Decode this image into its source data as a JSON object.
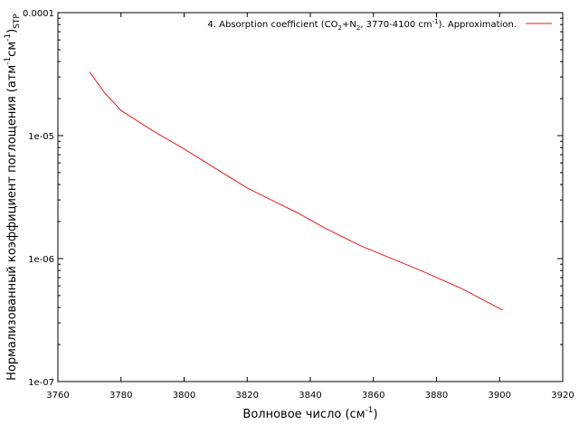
{
  "chart_data": {
    "type": "line",
    "xlabel": "Волновое число (см",
    "xlabel_sup": "-1",
    "xlabel_end": ")",
    "ylabel": {
      "main": "Нормализованный коэффициент поглощения (атм",
      "sup1": "-1",
      "mid": "см",
      "sup2": "-1",
      "close": ")",
      "sub": "STP"
    },
    "xlim": [
      3760,
      3920
    ],
    "ylim": [
      1e-07,
      0.0001
    ],
    "yscale": "log",
    "x_ticks": [
      3760,
      3780,
      3800,
      3820,
      3840,
      3860,
      3880,
      3900,
      3920
    ],
    "y_ticks": [
      {
        "value": 0.0001,
        "label": "0.0001"
      },
      {
        "value": 1e-05,
        "label": "1e-05"
      },
      {
        "value": 1e-06,
        "label": "1e-06"
      },
      {
        "value": 1e-07,
        "label": "1e-07"
      }
    ],
    "grid": false,
    "legend_position": "top-right",
    "series": [
      {
        "name": {
          "prefix": "4. Absorption coefficient (CO",
          "sub1": "2",
          "mid1": "+N",
          "sub2": "2",
          "mid2": ",  3770-4100 cm",
          "sup": "-1",
          "suffix": "). Approximation."
        },
        "color": "#e41a1c",
        "x": [
          3770,
          3775,
          3780,
          3790,
          3800,
          3810,
          3820,
          3830,
          3836,
          3845,
          3856,
          3865,
          3875,
          3888,
          3901
        ],
        "y": [
          3.3e-05,
          2.2e-05,
          1.6e-05,
          1.1e-05,
          7.8e-06,
          5.4e-06,
          3.75e-06,
          2.8e-06,
          2.35e-06,
          1.75e-06,
          1.27e-06,
          1.02e-06,
          8e-07,
          5.7e-07,
          3.8e-07
        ]
      }
    ]
  }
}
